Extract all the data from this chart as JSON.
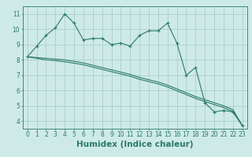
{
  "xlabel": "Humidex (Indice chaleur)",
  "x": [
    0,
    1,
    2,
    3,
    4,
    5,
    6,
    7,
    8,
    9,
    10,
    11,
    12,
    13,
    14,
    15,
    16,
    17,
    18,
    19,
    20,
    21,
    22,
    23
  ],
  "line1": [
    8.2,
    8.9,
    9.6,
    10.1,
    11.0,
    10.4,
    9.3,
    9.4,
    9.4,
    9.0,
    9.1,
    8.9,
    9.6,
    9.9,
    9.9,
    10.4,
    9.1,
    7.0,
    7.5,
    5.2,
    4.6,
    4.7,
    4.6,
    3.7
  ],
  "line2": [
    8.2,
    8.15,
    8.1,
    8.05,
    8.0,
    7.9,
    7.8,
    7.65,
    7.5,
    7.35,
    7.2,
    7.05,
    6.85,
    6.7,
    6.55,
    6.35,
    6.1,
    5.85,
    5.6,
    5.4,
    5.2,
    5.0,
    4.75,
    3.7
  ],
  "line3": [
    8.2,
    8.1,
    8.0,
    7.95,
    7.88,
    7.78,
    7.68,
    7.53,
    7.38,
    7.23,
    7.08,
    6.93,
    6.73,
    6.58,
    6.43,
    6.23,
    5.98,
    5.73,
    5.48,
    5.28,
    5.08,
    4.88,
    4.63,
    3.7
  ],
  "ylim": [
    3.5,
    11.5
  ],
  "xlim": [
    -0.5,
    23.5
  ],
  "line_color": "#2a7a6a",
  "bg_color": "#ceeae6",
  "grid_color": "#aacfca",
  "tick_label_fontsize": 5.5,
  "xlabel_fontsize": 7.5
}
